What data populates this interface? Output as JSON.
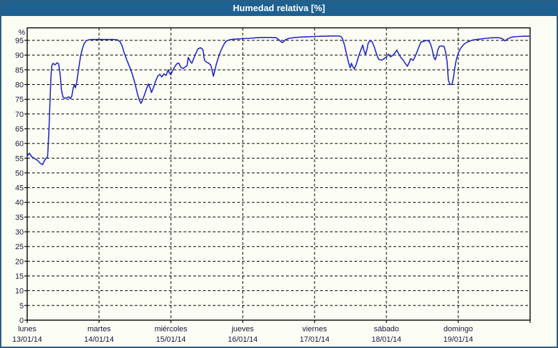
{
  "window": {
    "title": "Humedad relativa [%]"
  },
  "colors": {
    "titlebar_bg": "#1e6191",
    "title_text": "#ffffff",
    "window_border": "#2b5e84",
    "background": "#fcfdf4",
    "grid": "#000000",
    "line": "#2126c6",
    "axis_text": "#16163e"
  },
  "chart_data": {
    "type": "line",
    "title": "Humedad relativa [%]",
    "ylabel": "%",
    "unit_label": "%",
    "ylim": [
      0,
      99
    ],
    "yticks": [
      0,
      5,
      10,
      15,
      20,
      25,
      30,
      35,
      40,
      45,
      50,
      55,
      60,
      65,
      70,
      75,
      80,
      85,
      90,
      95
    ],
    "grid": "dashed",
    "legend": "none",
    "x_unit": "hours from Monday 13/01/14 00:00",
    "xlim": [
      0,
      168
    ],
    "x_day_span_hours": 24,
    "days": [
      {
        "name": "lunes",
        "date": "13/01/14"
      },
      {
        "name": "martes",
        "date": "14/01/14"
      },
      {
        "name": "miércoles",
        "date": "15/01/14"
      },
      {
        "name": "jueves",
        "date": "16/01/14"
      },
      {
        "name": "viernes",
        "date": "17/01/14"
      },
      {
        "name": "sábado",
        "date": "18/01/14"
      },
      {
        "name": "domingo",
        "date": "19/01/14"
      }
    ],
    "series": [
      {
        "name": "Humedad relativa",
        "points": [
          [
            0,
            55.7
          ],
          [
            0.7,
            56.7
          ],
          [
            1.6,
            55.4
          ],
          [
            2.6,
            54.8
          ],
          [
            3.5,
            54.2
          ],
          [
            4.2,
            53.4
          ],
          [
            5.1,
            52.8
          ],
          [
            5.8,
            54.2
          ],
          [
            6.3,
            55
          ],
          [
            6.8,
            55.3
          ],
          [
            7.2,
            63
          ],
          [
            7.7,
            76
          ],
          [
            7.9,
            82
          ],
          [
            8.2,
            86.3
          ],
          [
            8.6,
            87.2
          ],
          [
            9.3,
            86.7
          ],
          [
            10,
            87.4
          ],
          [
            10.5,
            87
          ],
          [
            11,
            83.5
          ],
          [
            11.4,
            78.5
          ],
          [
            11.9,
            75.8
          ],
          [
            12.6,
            75.3
          ],
          [
            13.3,
            75.6
          ],
          [
            14,
            75.8
          ],
          [
            14.4,
            75.2
          ],
          [
            14.9,
            76
          ],
          [
            15.4,
            79
          ],
          [
            15.8,
            80
          ],
          [
            16.1,
            78.9
          ],
          [
            16.5,
            80.5
          ],
          [
            17,
            84
          ],
          [
            17.5,
            87.5
          ],
          [
            17.9,
            90
          ],
          [
            18.4,
            92
          ],
          [
            18.9,
            93.6
          ],
          [
            19.6,
            94.8
          ],
          [
            20.5,
            95.2
          ],
          [
            22.1,
            95.3
          ],
          [
            24,
            95.3
          ],
          [
            26.3,
            95.3
          ],
          [
            28.7,
            95.3
          ],
          [
            30.1,
            95.2
          ],
          [
            31,
            94.6
          ],
          [
            31.7,
            93.2
          ],
          [
            32.4,
            90.8
          ],
          [
            33.3,
            88.3
          ],
          [
            34.3,
            85.8
          ],
          [
            35.2,
            83.2
          ],
          [
            36.1,
            80
          ],
          [
            36.8,
            77
          ],
          [
            37.5,
            74.6
          ],
          [
            38,
            73.6
          ],
          [
            38.4,
            74.4
          ],
          [
            39.1,
            76.3
          ],
          [
            39.8,
            78.4
          ],
          [
            40.5,
            80.2
          ],
          [
            41,
            79
          ],
          [
            41.5,
            77.3
          ],
          [
            42.2,
            79
          ],
          [
            42.9,
            81.2
          ],
          [
            43.6,
            82.8
          ],
          [
            44.3,
            83.5
          ],
          [
            45,
            82.6
          ],
          [
            45.7,
            83.6
          ],
          [
            46.4,
            83.1
          ],
          [
            47.1,
            85
          ],
          [
            47.5,
            83.9
          ],
          [
            48,
            83.3
          ],
          [
            48.5,
            84.6
          ],
          [
            49.2,
            85.9
          ],
          [
            49.9,
            87
          ],
          [
            50.6,
            87.3
          ],
          [
            51.3,
            85.9
          ],
          [
            52,
            85.4
          ],
          [
            52.7,
            85.9
          ],
          [
            53.4,
            86.4
          ],
          [
            53.8,
            89.2
          ],
          [
            54.3,
            88.3
          ],
          [
            55,
            87.2
          ],
          [
            55.7,
            89
          ],
          [
            56.4,
            90.8
          ],
          [
            57.1,
            92.2
          ],
          [
            58,
            92.5
          ],
          [
            58.7,
            91.8
          ],
          [
            59.2,
            88.3
          ],
          [
            59.9,
            87.6
          ],
          [
            60.6,
            87.3
          ],
          [
            61.3,
            86.6
          ],
          [
            61.7,
            85.2
          ],
          [
            62.2,
            82.8
          ],
          [
            62.7,
            84.8
          ],
          [
            63.1,
            86.6
          ],
          [
            63.8,
            89
          ],
          [
            64.5,
            91
          ],
          [
            65.2,
            92.6
          ],
          [
            65.9,
            94
          ],
          [
            66.6,
            94.8
          ],
          [
            67.6,
            95.2
          ],
          [
            69,
            95.4
          ],
          [
            70.6,
            95.5
          ],
          [
            72,
            95.6
          ],
          [
            74.3,
            95.7
          ],
          [
            76.7,
            95.9
          ],
          [
            79,
            96
          ],
          [
            81.3,
            96
          ],
          [
            83.2,
            95.9
          ],
          [
            84.1,
            95.2
          ],
          [
            84.8,
            94.6
          ],
          [
            85.3,
            94.2
          ],
          [
            85.7,
            94.7
          ],
          [
            86.4,
            95.3
          ],
          [
            87.6,
            95.7
          ],
          [
            88.8,
            95.9
          ],
          [
            91.1,
            96.1
          ],
          [
            93.4,
            96.2
          ],
          [
            96,
            96.3
          ],
          [
            98.6,
            96.4
          ],
          [
            101.4,
            96.5
          ],
          [
            104.1,
            96.5
          ],
          [
            104.8,
            96.3
          ],
          [
            105.3,
            95.7
          ],
          [
            106,
            93.4
          ],
          [
            106.7,
            90.3
          ],
          [
            107.4,
            87.3
          ],
          [
            107.9,
            85.7
          ],
          [
            108.3,
            87.2
          ],
          [
            108.8,
            86.1
          ],
          [
            109.3,
            85.3
          ],
          [
            110,
            87.1
          ],
          [
            110.7,
            89.6
          ],
          [
            111.4,
            91.6
          ],
          [
            112.1,
            93.4
          ],
          [
            112.5,
            91.6
          ],
          [
            113,
            90.1
          ],
          [
            113.5,
            91.9
          ],
          [
            113.9,
            94
          ],
          [
            114.6,
            95
          ],
          [
            115.3,
            94.4
          ],
          [
            116,
            92.6
          ],
          [
            116.7,
            90.4
          ],
          [
            117.4,
            88.6
          ],
          [
            118.4,
            88.3
          ],
          [
            119.1,
            88.7
          ],
          [
            120,
            89.4
          ],
          [
            120.7,
            90.3
          ],
          [
            121.4,
            89.4
          ],
          [
            122.1,
            89.9
          ],
          [
            122.8,
            90.7
          ],
          [
            123.5,
            91.7
          ],
          [
            124.2,
            90.2
          ],
          [
            124.9,
            89.1
          ],
          [
            125.6,
            88.3
          ],
          [
            126.3,
            87.2
          ],
          [
            127,
            86.2
          ],
          [
            127.7,
            87.6
          ],
          [
            128.1,
            88.8
          ],
          [
            128.9,
            88.2
          ],
          [
            129.6,
            89.5
          ],
          [
            130.3,
            91.3
          ],
          [
            131,
            93.2
          ],
          [
            131.6,
            94.5
          ],
          [
            132.6,
            94.7
          ],
          [
            133.5,
            95
          ],
          [
            134.2,
            94.7
          ],
          [
            134.7,
            93.9
          ],
          [
            135.4,
            91.5
          ],
          [
            135.8,
            89.3
          ],
          [
            136.3,
            88.4
          ],
          [
            136.8,
            90
          ],
          [
            137.2,
            91.8
          ],
          [
            137.7,
            93
          ],
          [
            138.6,
            93.1
          ],
          [
            139.3,
            92.9
          ],
          [
            139.8,
            90.9
          ],
          [
            140.3,
            87.5
          ],
          [
            140.7,
            81.5
          ],
          [
            141.2,
            80.1
          ],
          [
            141.9,
            80
          ],
          [
            142.4,
            82.3
          ],
          [
            142.8,
            85.5
          ],
          [
            143.3,
            88.2
          ],
          [
            143.8,
            90
          ],
          [
            144.2,
            91.2
          ],
          [
            144.9,
            92.5
          ],
          [
            145.9,
            93.7
          ],
          [
            147,
            94.4
          ],
          [
            148.7,
            95.1
          ],
          [
            151,
            95.4
          ],
          [
            153.3,
            95.7
          ],
          [
            155.7,
            95.9
          ],
          [
            157.5,
            95.9
          ],
          [
            158.7,
            95.6
          ],
          [
            159.6,
            94.8
          ],
          [
            160.5,
            95.5
          ],
          [
            161.9,
            96.1
          ],
          [
            163.8,
            96.3
          ],
          [
            166.1,
            96.4
          ],
          [
            168,
            96.4
          ]
        ]
      }
    ]
  }
}
